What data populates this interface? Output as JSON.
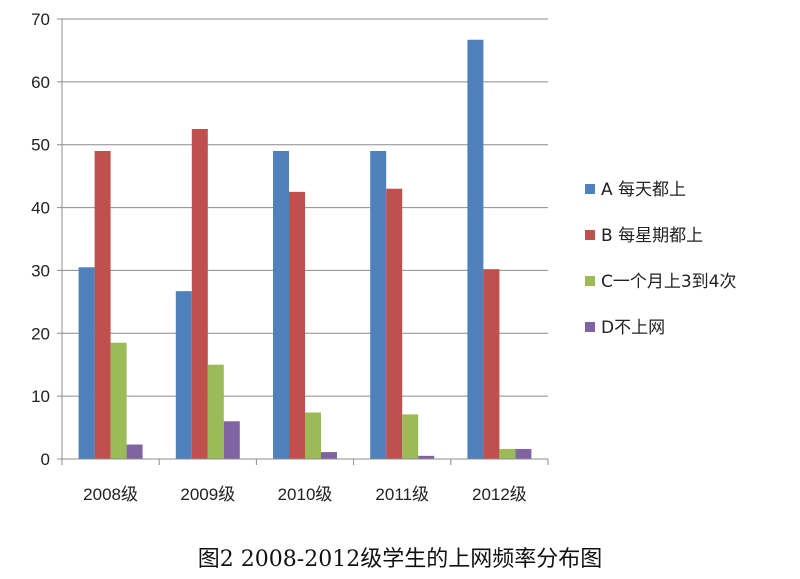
{
  "caption": "图2 2008-2012级学生的上网频率分布图",
  "chart_data": {
    "type": "bar",
    "title": "",
    "xlabel": "",
    "ylabel": "",
    "categories": [
      "2008级",
      "2009级",
      "2010级",
      "2011级",
      "2012级"
    ],
    "ylim": [
      0,
      70
    ],
    "yticks": [
      0,
      10,
      20,
      30,
      40,
      50,
      60,
      70
    ],
    "grid": true,
    "legend_position": "right",
    "series": [
      {
        "name": "A 每天都上",
        "color": "#4f81bd",
        "values": [
          30.5,
          26.7,
          49.0,
          49.0,
          66.7
        ]
      },
      {
        "name": "B 每星期都上",
        "color": "#c0504d",
        "values": [
          49.0,
          52.5,
          42.5,
          43.0,
          30.2
        ]
      },
      {
        "name": "C一个月上3到4次",
        "color": "#9bbb59",
        "values": [
          18.5,
          15.0,
          7.4,
          7.1,
          1.6
        ]
      },
      {
        "name": "D不上网",
        "color": "#8064a2",
        "values": [
          2.3,
          6.0,
          1.1,
          0.5,
          1.6
        ]
      }
    ]
  }
}
